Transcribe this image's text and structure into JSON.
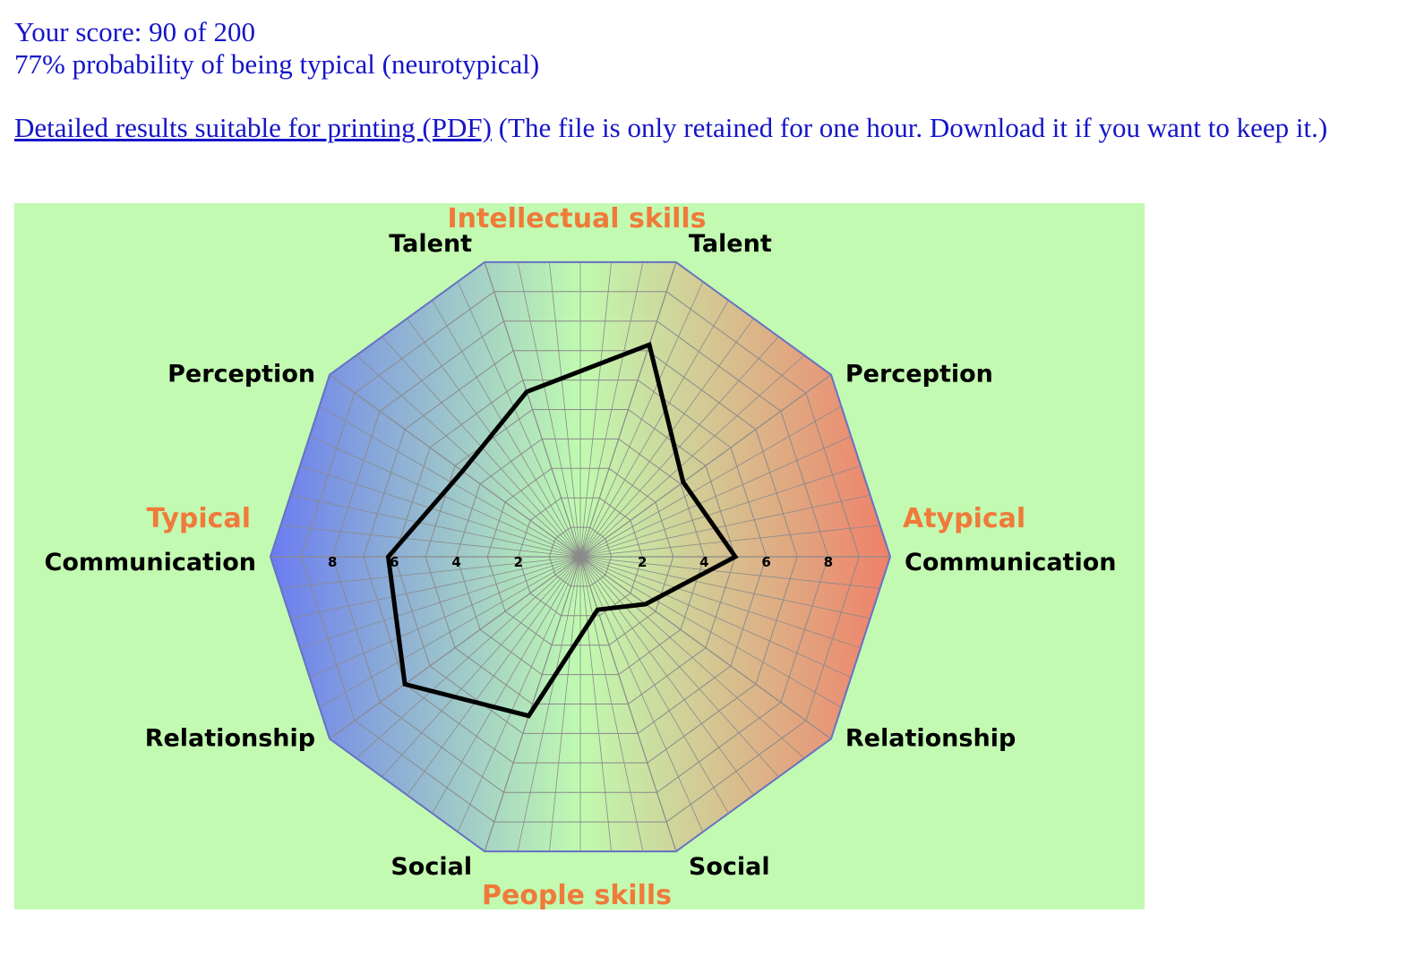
{
  "result": {
    "score_text": "Your score: 90 of 200",
    "probability_text": "77% probability of being typical (neurotypical)"
  },
  "pdf": {
    "link_text": "Detailed results suitable for printing (PDF)",
    "note_text": " (The file is only retained for one hour. Download it if you want to keep it.)"
  },
  "chart_data": {
    "type": "radar",
    "top_label": "Intellectual skills",
    "bottom_label": "People skills",
    "left_label": "Typical",
    "right_label": "Atypical",
    "scale_max": 10,
    "ticks": [
      2,
      4,
      6,
      8
    ],
    "tick_labels": [
      "2",
      "4",
      "6",
      "8"
    ],
    "colors": {
      "typical": "#6b7cf0",
      "center": "#c0fab0",
      "atypical": "#f0806a",
      "background": "#c2fab2",
      "accent": "#f07a3a",
      "profile": "#000000"
    },
    "axes": [
      {
        "side": "atypical",
        "label": "Talent",
        "value": 7.2
      },
      {
        "side": "atypical",
        "label": "Perception",
        "value": 4.1
      },
      {
        "side": "atypical",
        "label": "Communication",
        "value": 5.0
      },
      {
        "side": "atypical",
        "label": "Relationship",
        "value": 2.6
      },
      {
        "side": "atypical",
        "label": "Social",
        "value": 1.8
      },
      {
        "side": "typical",
        "label": "Social",
        "value": 5.4
      },
      {
        "side": "typical",
        "label": "Relationship",
        "value": 7.0
      },
      {
        "side": "typical",
        "label": "Communication",
        "value": 6.2
      },
      {
        "side": "typical",
        "label": "Perception",
        "value": 4.7
      },
      {
        "side": "typical",
        "label": "Talent",
        "value": 5.6
      }
    ]
  }
}
